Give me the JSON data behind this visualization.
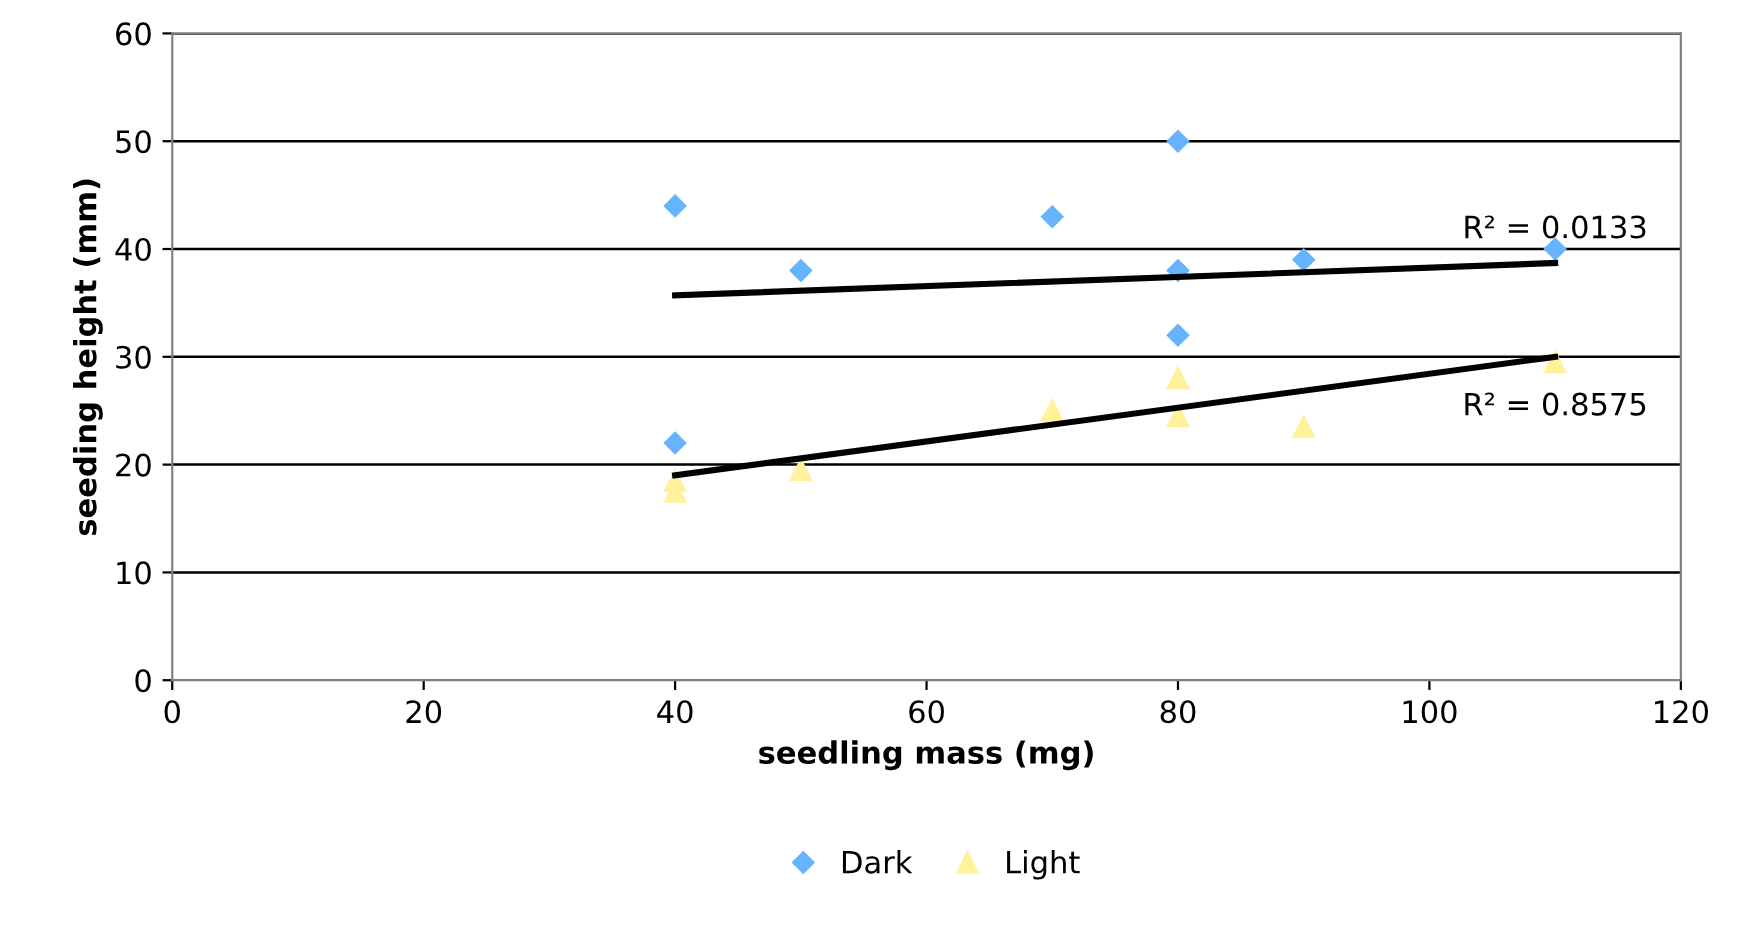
{
  "chart_data": {
    "type": "scatter",
    "xlabel": "seedling mass (mg)",
    "ylabel": "seeding height (mm)",
    "xlim": [
      0,
      120
    ],
    "xticks": [
      0,
      20,
      40,
      60,
      80,
      100,
      120
    ],
    "ylim": [
      0,
      60
    ],
    "yticks": [
      0,
      10,
      20,
      30,
      40,
      50,
      60
    ],
    "grid": "y",
    "legend": "bottom",
    "series": [
      {
        "name": "Dark",
        "color": "#66b3ff",
        "marker": "diamond",
        "x": [
          40,
          40,
          50,
          70,
          80,
          80,
          80,
          90,
          110
        ],
        "values": [
          44,
          22,
          38,
          43,
          50,
          38,
          32,
          39,
          40
        ]
      },
      {
        "name": "Light",
        "color": "#fff29a",
        "marker": "triangle",
        "x": [
          40,
          40,
          50,
          70,
          80,
          80,
          90,
          110
        ],
        "values": [
          18.5,
          17.5,
          19.5,
          25,
          28,
          24.5,
          23.5,
          29.5
        ]
      },
      {
        "type": "line",
        "color": "#000000",
        "x": [
          40,
          110
        ],
        "values": [
          35.7,
          38.7
        ]
      },
      {
        "type": "line",
        "color": "#000000",
        "x": [
          40,
          110
        ],
        "values": [
          19,
          30
        ]
      }
    ],
    "annotations": [
      {
        "text": "R² = 0.0133",
        "x": 110,
        "y": 38.7
      },
      {
        "text": "R² = 0.8575",
        "x": 110,
        "y": 30
      }
    ]
  }
}
